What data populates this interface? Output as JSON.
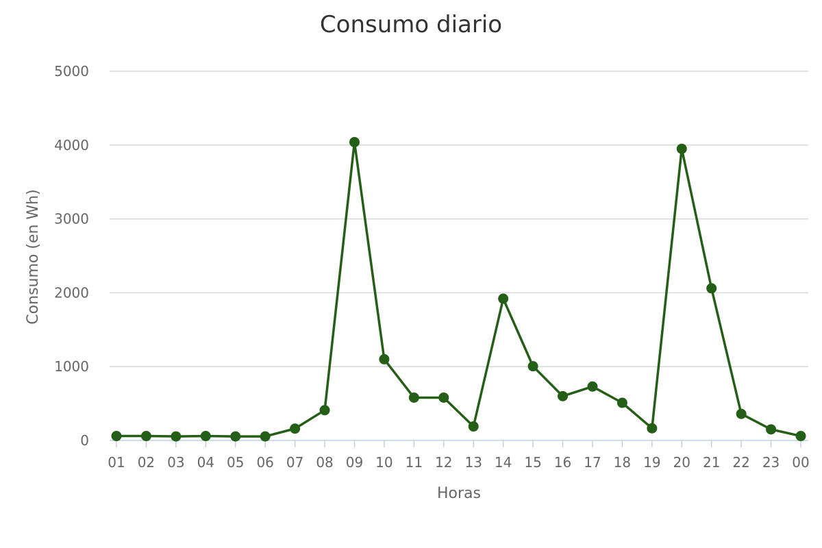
{
  "chart_data": {
    "type": "line",
    "title": "Consumo diario",
    "xlabel": "Horas",
    "ylabel": "Consumo (en Wh)",
    "ylim": [
      0,
      5000
    ],
    "yticks": [
      "0",
      "1000",
      "2000",
      "3000",
      "4000",
      "5000"
    ],
    "categories": [
      "01",
      "02",
      "03",
      "04",
      "05",
      "06",
      "07",
      "08",
      "09",
      "10",
      "11",
      "12",
      "13",
      "14",
      "15",
      "16",
      "17",
      "18",
      "19",
      "20",
      "21",
      "22",
      "23",
      "00"
    ],
    "series": [
      {
        "values": [
          60,
          60,
          55,
          60,
          55,
          55,
          160,
          410,
          4040,
          1100,
          580,
          580,
          190,
          1920,
          1005,
          600,
          730,
          510,
          165,
          3950,
          2060,
          360,
          150,
          60
        ],
        "color": "#255e17"
      }
    ],
    "grid": true,
    "legend": "none"
  }
}
